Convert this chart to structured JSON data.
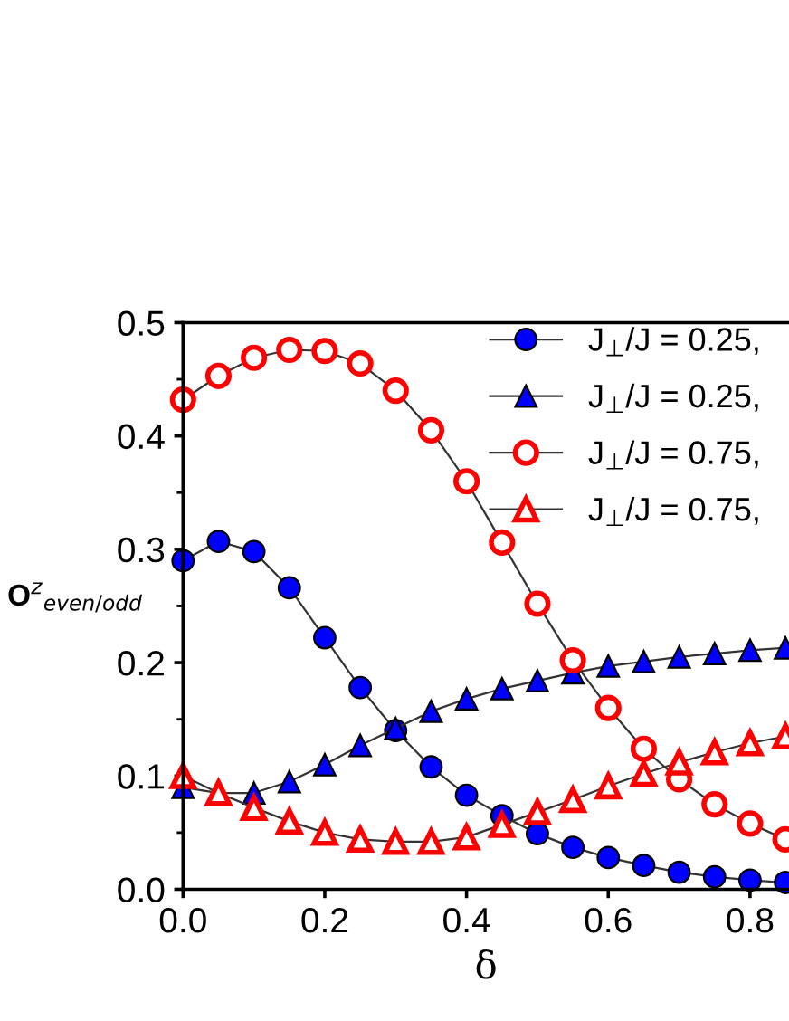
{
  "chart_data": {
    "type": "line",
    "xlabel": "δ",
    "ylabel": "O$^{z}$$_{even/odd}$",
    "x": [
      0,
      0.05,
      0.1,
      0.15,
      0.2,
      0.25,
      0.3,
      0.35,
      0.4,
      0.45,
      0.5,
      0.55,
      0.6,
      0.65,
      0.7,
      0.75,
      0.8,
      0.85
    ],
    "series": [
      {
        "name": "J$_{⊥}$/J = 0.25,",
        "color": "#0000ff",
        "marker": "circle",
        "values": [
          0.29,
          0.307,
          0.298,
          0.266,
          0.222,
          0.178,
          0.14,
          0.108,
          0.083,
          0.065,
          0.049,
          0.037,
          0.028,
          0.021,
          0.015,
          0.011,
          0.008,
          0.006
        ]
      },
      {
        "name": "J$_{⊥}$/J = 0.25,",
        "color": "#0000ff",
        "marker": "triangle",
        "values": [
          0.09,
          0.085,
          0.085,
          0.095,
          0.11,
          0.127,
          0.142,
          0.157,
          0.168,
          0.177,
          0.184,
          0.191,
          0.197,
          0.201,
          0.205,
          0.208,
          0.211,
          0.213
        ]
      },
      {
        "name": "J$_{⊥}$/J = 0.75,",
        "color": "#ff0000",
        "marker": "circle",
        "values": [
          0.432,
          0.453,
          0.469,
          0.476,
          0.475,
          0.464,
          0.44,
          0.405,
          0.36,
          0.306,
          0.252,
          0.202,
          0.16,
          0.124,
          0.097,
          0.075,
          0.058,
          0.044
        ]
      },
      {
        "name": "J$_{⊥}$/J = 0.75,",
        "color": "#ff0000",
        "marker": "triangle",
        "values": [
          0.1,
          0.085,
          0.072,
          0.06,
          0.05,
          0.044,
          0.042,
          0.042,
          0.046,
          0.057,
          0.068,
          0.079,
          0.091,
          0.102,
          0.112,
          0.121,
          0.129,
          0.135
        ]
      }
    ],
    "xlim": [
      0,
      0.855
    ],
    "ylim": [
      0,
      0.5
    ],
    "xticks": [
      {
        "value": 0,
        "label": "0.0"
      },
      {
        "value": 0.2,
        "label": "0.2"
      },
      {
        "value": 0.4,
        "label": "0.4"
      },
      {
        "value": 0.6,
        "label": "0.6"
      },
      {
        "value": 0.8,
        "label": "0.8"
      }
    ],
    "yticks": [
      {
        "value": 0,
        "label": "0.0"
      },
      0.1,
      0.2,
      0.3,
      0.4,
      0.5
    ],
    "legend": "top right",
    "grid": false
  }
}
